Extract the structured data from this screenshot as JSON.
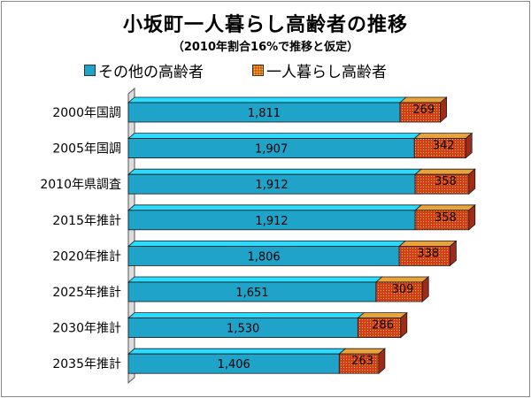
{
  "chart_data": {
    "type": "bar",
    "orientation": "horizontal",
    "stacked": true,
    "title": "小坂町一人暮らし高齢者の推移",
    "subtitle": "（2010年割合16%で推移と仮定）",
    "categories": [
      "2000年国調",
      "2005年国調",
      "2010年県調査",
      "2015年推計",
      "2020年推計",
      "2025年推計",
      "2030年推計",
      "2035年推計"
    ],
    "series": [
      {
        "name": "その他の高齢者",
        "values": [
          1811,
          1907,
          1912,
          1912,
          1806,
          1651,
          1530,
          1406
        ],
        "color": "#1fa3c9"
      },
      {
        "name": "一人暮らし高齢者",
        "values": [
          269,
          342,
          358,
          358,
          338,
          309,
          286,
          263
        ],
        "color": "#d33a1f"
      }
    ],
    "value_labels": {
      "series0": [
        "1,811",
        "1,907",
        "1,912",
        "1,912",
        "1,806",
        "1,651",
        "1,530",
        "1,406"
      ],
      "series1": [
        "269",
        "342",
        "358",
        "358",
        "338",
        "309",
        "286",
        "263"
      ]
    },
    "grid": false,
    "legend": "top"
  }
}
